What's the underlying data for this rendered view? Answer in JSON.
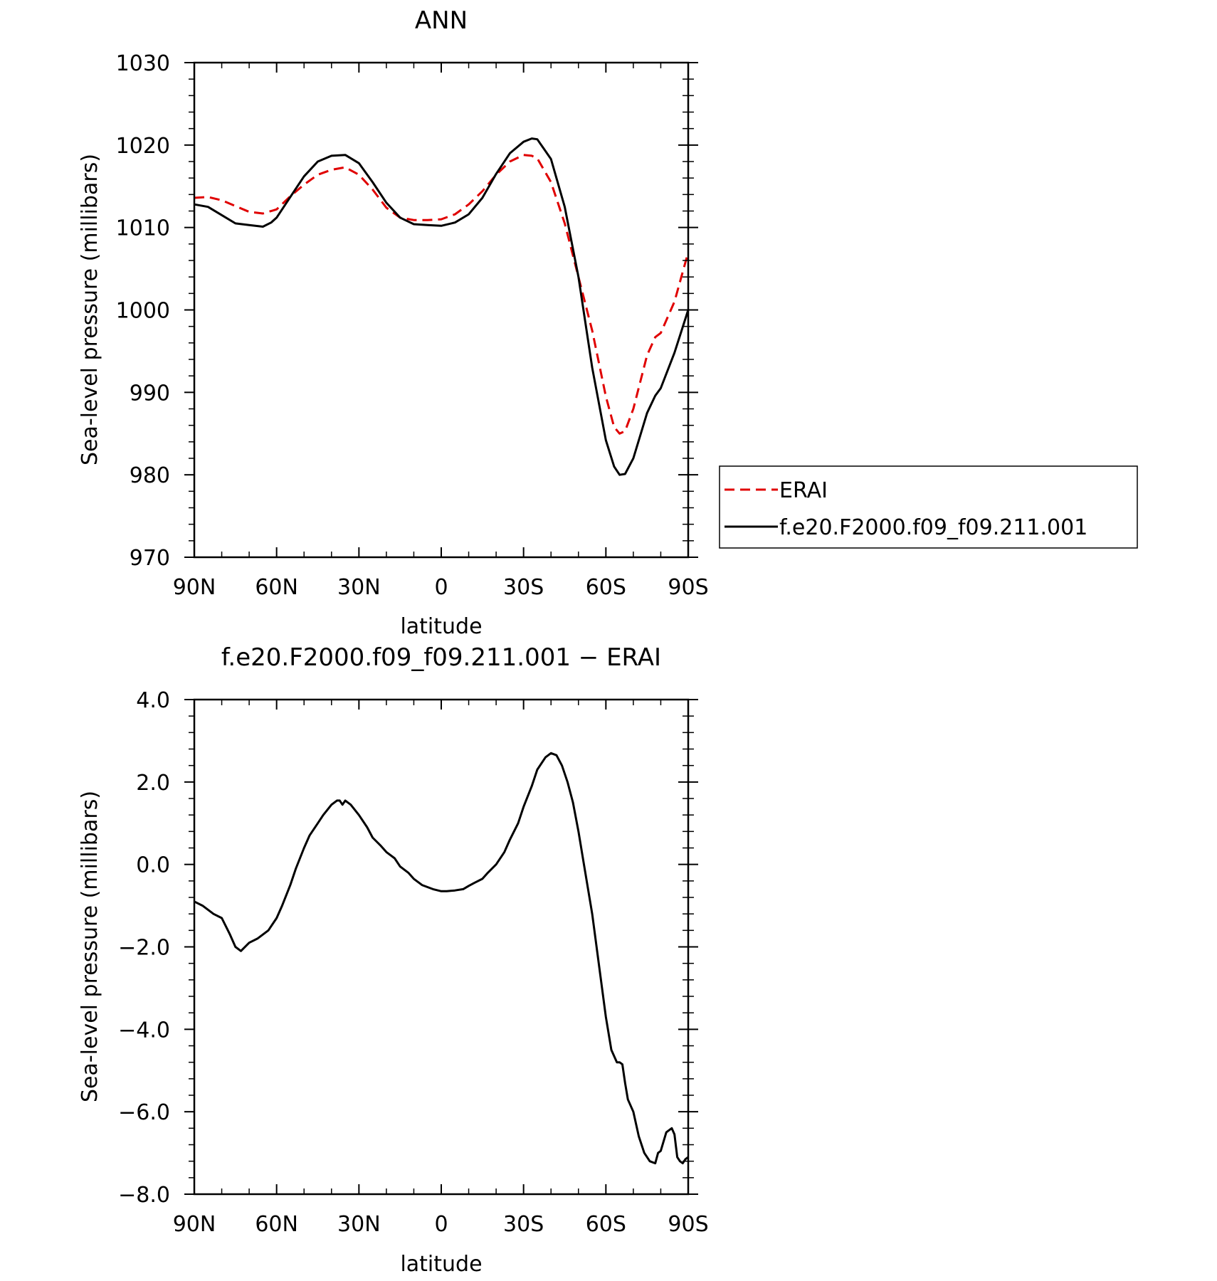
{
  "colors": {
    "model": "#000000",
    "obs": "#e00000",
    "frame": "#000000",
    "background": "#ffffff"
  },
  "chart_data": [
    {
      "type": "line",
      "title": "ANN",
      "xlabel": "latitude",
      "ylabel": "Sea-level pressure (millibars)",
      "xlim": [
        90,
        -90
      ],
      "ylim": [
        970,
        1030
      ],
      "x_ticks": [
        90,
        60,
        30,
        0,
        -30,
        -60,
        -90
      ],
      "x_tick_labels": [
        "90N",
        "60N",
        "30N",
        "0",
        "30S",
        "60S",
        "90S"
      ],
      "y_ticks": [
        970,
        980,
        990,
        1000,
        1010,
        1020,
        1030
      ],
      "y_tick_labels": [
        "970",
        "980",
        "990",
        "1000",
        "1010",
        "1020",
        "1030"
      ],
      "legend": {
        "placement": "right",
        "entries": [
          "ERAI",
          "f.e20.F2000.f09_f09.211.001"
        ]
      },
      "series": [
        {
          "name": "ERAI",
          "style": "dashed",
          "x": [
            90,
            85,
            80,
            75,
            70,
            65,
            60,
            55,
            50,
            45,
            40,
            35,
            30,
            25,
            20,
            15,
            10,
            5,
            0,
            -5,
            -10,
            -15,
            -20,
            -25,
            -30,
            -33,
            -35,
            -40,
            -45,
            -50,
            -55,
            -60,
            -63,
            -65,
            -67,
            -70,
            -75,
            -78,
            -80,
            -85,
            -90
          ],
          "y": [
            1013.6,
            1013.7,
            1013.3,
            1012.6,
            1011.9,
            1011.7,
            1012.2,
            1013.8,
            1015.2,
            1016.4,
            1017.0,
            1017.3,
            1016.4,
            1014.6,
            1012.4,
            1011.2,
            1010.9,
            1010.9,
            1011.0,
            1011.6,
            1012.8,
            1014.4,
            1016.4,
            1018.0,
            1018.8,
            1018.7,
            1018.4,
            1015.5,
            1010.5,
            1004.0,
            997.5,
            989.5,
            985.8,
            985.0,
            985.3,
            988.0,
            994.5,
            996.7,
            997.2,
            1001.0,
            1007.0
          ]
        },
        {
          "name": "f.e20.F2000.f09_f09.211.001",
          "style": "solid",
          "x": [
            90,
            85,
            80,
            75,
            70,
            65,
            62,
            60,
            55,
            50,
            45,
            40,
            35,
            30,
            25,
            20,
            15,
            10,
            5,
            0,
            -5,
            -10,
            -15,
            -20,
            -25,
            -30,
            -33,
            -35,
            -40,
            -45,
            -50,
            -55,
            -60,
            -63,
            -65,
            -67,
            -70,
            -75,
            -78,
            -80,
            -85,
            -90
          ],
          "y": [
            1012.8,
            1012.5,
            1011.5,
            1010.5,
            1010.3,
            1010.1,
            1010.6,
            1011.2,
            1013.7,
            1016.2,
            1018.0,
            1018.7,
            1018.8,
            1017.8,
            1015.5,
            1013.0,
            1011.2,
            1010.4,
            1010.3,
            1010.2,
            1010.6,
            1011.6,
            1013.6,
            1016.5,
            1019.0,
            1020.4,
            1020.8,
            1020.7,
            1018.3,
            1012.5,
            1004.0,
            993.0,
            984.2,
            981.0,
            980.0,
            980.1,
            982.0,
            987.5,
            989.6,
            990.5,
            994.8,
            1000.0
          ]
        }
      ]
    },
    {
      "type": "line",
      "title": "f.e20.F2000.f09_f09.211.001 − ERAI",
      "xlabel": "latitude",
      "ylabel": "Sea-level pressure (millibars)",
      "xlim": [
        90,
        -90
      ],
      "ylim": [
        -8,
        4
      ],
      "x_ticks": [
        90,
        60,
        30,
        0,
        -30,
        -60,
        -90
      ],
      "x_tick_labels": [
        "90N",
        "60N",
        "30N",
        "0",
        "30S",
        "60S",
        "90S"
      ],
      "y_ticks": [
        -8,
        -6,
        -4,
        -2,
        0,
        2,
        4
      ],
      "y_tick_labels": [
        "−8.0",
        "−6.0",
        "−4.0",
        "−2.0",
        "0.0",
        "2.0",
        "4.0"
      ],
      "series": [
        {
          "style": "solid",
          "x": [
            90,
            87,
            83,
            80,
            77,
            75,
            73,
            70,
            67,
            63,
            60,
            58,
            55,
            53,
            50,
            48,
            45,
            43,
            40,
            38,
            37,
            36,
            35,
            33,
            30,
            27,
            25,
            22,
            20,
            17,
            15,
            12,
            10,
            7,
            5,
            3,
            0,
            -2,
            -5,
            -8,
            -10,
            -12,
            -15,
            -17,
            -20,
            -23,
            -25,
            -28,
            -30,
            -33,
            -35,
            -38,
            -40,
            -42,
            -44,
            -46,
            -48,
            -50,
            -52,
            -55,
            -58,
            -60,
            -62,
            -64,
            -65,
            -66,
            -67,
            -68,
            -70,
            -72,
            -74,
            -75,
            -76,
            -78,
            -79,
            -80,
            -82,
            -83,
            -84,
            -85,
            -86,
            -87,
            -88,
            -89,
            -90
          ],
          "y": [
            -0.9,
            -1.0,
            -1.2,
            -1.3,
            -1.7,
            -2.0,
            -2.1,
            -1.9,
            -1.8,
            -1.6,
            -1.3,
            -1.0,
            -0.5,
            -0.1,
            0.4,
            0.7,
            1.0,
            1.2,
            1.45,
            1.55,
            1.55,
            1.45,
            1.55,
            1.45,
            1.2,
            0.9,
            0.65,
            0.45,
            0.3,
            0.15,
            -0.05,
            -0.2,
            -0.35,
            -0.5,
            -0.55,
            -0.6,
            -0.65,
            -0.65,
            -0.63,
            -0.6,
            -0.52,
            -0.45,
            -0.35,
            -0.2,
            0.0,
            0.3,
            0.6,
            1.0,
            1.4,
            1.9,
            2.3,
            2.6,
            2.7,
            2.65,
            2.4,
            2.0,
            1.5,
            0.8,
            0.0,
            -1.2,
            -2.7,
            -3.7,
            -4.5,
            -4.8,
            -4.8,
            -4.85,
            -5.3,
            -5.7,
            -6.0,
            -6.6,
            -7.0,
            -7.1,
            -7.2,
            -7.25,
            -7.0,
            -6.95,
            -6.5,
            -6.45,
            -6.4,
            -6.55,
            -7.1,
            -7.2,
            -7.25,
            -7.15,
            -7.1
          ]
        }
      ]
    }
  ]
}
